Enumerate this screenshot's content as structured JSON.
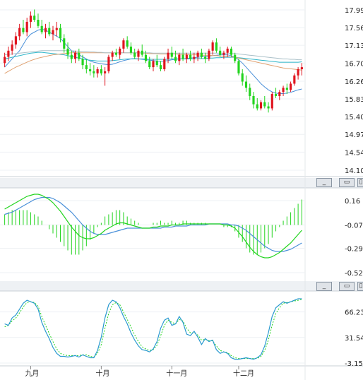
{
  "window_buttons": {
    "minimize_glyph": "_",
    "restore_glyph": "▭",
    "maximize_glyph": "▯"
  },
  "chart_data": [
    {
      "type": "candlestick",
      "panel": "price",
      "ylim": [
        14.1,
        17.99
      ],
      "yticks": [
        "17.99",
        "17.56",
        "17.13",
        "16.70",
        "16.26",
        "15.83",
        "15.40",
        "14.97",
        "14.54",
        "14.10"
      ],
      "xticks": [
        "九月",
        "十月",
        "十一月",
        "十二月"
      ],
      "colors": {
        "up": "#e0141e",
        "down": "#22d41e"
      },
      "candles": [
        [
          16.7,
          16.95,
          16.6,
          16.85
        ],
        [
          16.85,
          17.1,
          16.75,
          17.0
        ],
        [
          17.0,
          17.25,
          16.9,
          17.15
        ],
        [
          17.15,
          17.45,
          17.05,
          17.35
        ],
        [
          17.35,
          17.65,
          17.25,
          17.55
        ],
        [
          17.55,
          17.75,
          17.4,
          17.45
        ],
        [
          17.45,
          17.8,
          17.35,
          17.7
        ],
        [
          17.7,
          17.95,
          17.55,
          17.85
        ],
        [
          17.85,
          18.0,
          17.7,
          17.75
        ],
        [
          17.75,
          17.9,
          17.55,
          17.6
        ],
        [
          17.6,
          17.75,
          17.4,
          17.45
        ],
        [
          17.45,
          17.65,
          17.3,
          17.55
        ],
        [
          17.55,
          17.7,
          17.35,
          17.4
        ],
        [
          17.4,
          17.6,
          17.25,
          17.5
        ],
        [
          17.5,
          17.7,
          17.35,
          17.55
        ],
        [
          17.55,
          17.65,
          17.2,
          17.3
        ],
        [
          17.3,
          17.4,
          16.95,
          17.05
        ],
        [
          17.05,
          17.2,
          16.8,
          16.9
        ],
        [
          16.9,
          17.0,
          16.7,
          16.8
        ],
        [
          16.8,
          17.0,
          16.7,
          16.95
        ],
        [
          16.95,
          17.05,
          16.75,
          16.8
        ],
        [
          16.8,
          16.9,
          16.55,
          16.65
        ],
        [
          16.65,
          16.8,
          16.45,
          16.55
        ],
        [
          16.55,
          16.7,
          16.4,
          16.5
        ],
        [
          16.5,
          16.65,
          16.35,
          16.45
        ],
        [
          16.45,
          16.6,
          16.35,
          16.55
        ],
        [
          16.55,
          16.65,
          16.4,
          16.45
        ],
        [
          16.45,
          16.6,
          16.15,
          16.5
        ],
        [
          16.5,
          16.9,
          16.45,
          16.85
        ],
        [
          16.85,
          17.0,
          16.75,
          16.95
        ],
        [
          16.95,
          17.05,
          16.85,
          16.9
        ],
        [
          16.9,
          17.1,
          16.8,
          17.05
        ],
        [
          17.05,
          17.3,
          16.95,
          17.25
        ],
        [
          17.25,
          17.35,
          17.05,
          17.1
        ],
        [
          17.1,
          17.2,
          16.9,
          16.95
        ],
        [
          16.95,
          17.05,
          16.8,
          16.85
        ],
        [
          16.85,
          17.05,
          16.75,
          17.0
        ],
        [
          17.0,
          17.15,
          16.85,
          16.9
        ],
        [
          16.9,
          17.0,
          16.7,
          16.75
        ],
        [
          16.75,
          16.85,
          16.55,
          16.6
        ],
        [
          16.6,
          16.8,
          16.5,
          16.75
        ],
        [
          16.75,
          16.9,
          16.6,
          16.65
        ],
        [
          16.65,
          16.75,
          16.5,
          16.55
        ],
        [
          16.55,
          16.85,
          16.5,
          16.8
        ],
        [
          16.8,
          17.05,
          16.7,
          16.95
        ],
        [
          16.95,
          17.1,
          16.8,
          16.85
        ],
        [
          16.85,
          17.0,
          16.7,
          16.75
        ],
        [
          16.75,
          16.95,
          16.65,
          16.9
        ],
        [
          16.9,
          17.05,
          16.75,
          16.8
        ],
        [
          16.8,
          16.95,
          16.7,
          16.9
        ],
        [
          16.9,
          17.0,
          16.75,
          16.8
        ],
        [
          16.8,
          16.95,
          16.7,
          16.85
        ],
        [
          16.85,
          17.0,
          16.75,
          16.95
        ],
        [
          16.95,
          17.05,
          16.8,
          16.85
        ],
        [
          16.85,
          16.95,
          16.7,
          16.8
        ],
        [
          16.8,
          17.05,
          16.75,
          17.0
        ],
        [
          17.0,
          17.25,
          16.9,
          17.2
        ],
        [
          17.2,
          17.3,
          16.95,
          17.0
        ],
        [
          17.0,
          17.1,
          16.85,
          16.9
        ],
        [
          16.9,
          17.0,
          16.8,
          16.95
        ],
        [
          16.95,
          17.1,
          16.85,
          17.05
        ],
        [
          17.05,
          17.1,
          16.85,
          16.9
        ],
        [
          16.9,
          16.95,
          16.7,
          16.75
        ],
        [
          16.75,
          16.8,
          16.4,
          16.45
        ],
        [
          16.45,
          16.55,
          16.15,
          16.25
        ],
        [
          16.25,
          16.4,
          16.0,
          16.1
        ],
        [
          16.1,
          16.2,
          15.8,
          15.9
        ],
        [
          15.9,
          16.0,
          15.6,
          15.7
        ],
        [
          15.7,
          15.85,
          15.55,
          15.6
        ],
        [
          15.6,
          15.8,
          15.55,
          15.75
        ],
        [
          15.75,
          15.9,
          15.6,
          15.65
        ],
        [
          15.65,
          15.75,
          15.5,
          15.6
        ],
        [
          15.6,
          16.0,
          15.55,
          15.95
        ],
        [
          15.95,
          16.1,
          15.85,
          15.9
        ],
        [
          15.9,
          16.05,
          15.8,
          16.0
        ],
        [
          16.0,
          16.15,
          15.9,
          16.1
        ],
        [
          16.1,
          16.2,
          15.95,
          16.05
        ],
        [
          16.05,
          16.25,
          16.0,
          16.2
        ],
        [
          16.2,
          16.45,
          16.15,
          16.4
        ],
        [
          16.4,
          16.6,
          16.3,
          16.55
        ],
        [
          16.55,
          16.7,
          16.4,
          16.6
        ]
      ],
      "moving_averages": [
        {
          "color": "#4a90d9",
          "values": [
            16.6,
            16.7,
            16.8,
            16.9,
            17.0,
            17.15,
            17.3,
            17.4,
            17.45,
            17.5,
            17.52,
            17.5,
            17.45,
            17.4,
            17.35,
            17.3,
            17.2,
            17.1,
            17.0,
            16.95,
            16.9,
            16.85,
            16.8,
            16.75,
            16.72,
            16.7,
            16.68,
            16.67,
            16.66,
            16.67,
            16.7,
            16.73,
            16.76,
            16.78,
            16.8,
            16.81,
            16.8,
            16.79,
            16.78,
            16.77,
            16.76,
            16.75,
            16.74,
            16.75,
            16.76,
            16.78,
            16.79,
            16.8,
            16.8,
            16.81,
            16.82,
            16.83,
            16.84,
            16.85,
            16.86,
            16.87,
            16.88,
            16.89,
            16.9,
            16.9,
            16.9,
            16.88,
            16.84,
            16.78,
            16.7,
            16.6,
            16.5,
            16.4,
            16.3,
            16.2,
            16.12,
            16.05,
            16.0,
            15.97,
            15.96,
            15.96,
            15.97,
            15.99,
            16.02,
            16.05,
            16.07
          ]
        },
        {
          "color": "#2bb5c9",
          "values": [
            16.8,
            16.82,
            16.84,
            16.86,
            16.88,
            16.9,
            16.92,
            16.94,
            16.95,
            16.96,
            16.96,
            16.95,
            16.94,
            16.93,
            16.92,
            16.91,
            16.9,
            16.88,
            16.86,
            16.84,
            16.82,
            16.8,
            16.78,
            16.77,
            16.76,
            16.75,
            16.75,
            16.75,
            16.75,
            16.76,
            16.77,
            16.78,
            16.79,
            16.8,
            16.8,
            16.8,
            16.8,
            16.8,
            16.8,
            16.79,
            16.79,
            16.79,
            16.79,
            16.79,
            16.79,
            16.8,
            16.8,
            16.8,
            16.8,
            16.8,
            16.8,
            16.8,
            16.81,
            16.81,
            16.81,
            16.82,
            16.82,
            16.83,
            16.83,
            16.84,
            16.84,
            16.84,
            16.84,
            16.83,
            16.82,
            16.81,
            16.8,
            16.79,
            16.78,
            16.77,
            16.76,
            16.75,
            16.74,
            16.73,
            16.72,
            16.72,
            16.72,
            16.72,
            16.72,
            16.72,
            16.73
          ]
        },
        {
          "color": "#e0a070",
          "values": [
            16.45,
            16.5,
            16.55,
            16.6,
            16.64,
            16.68,
            16.72,
            16.76,
            16.79,
            16.82,
            16.84,
            16.86,
            16.88,
            16.9,
            16.91,
            16.92,
            16.93,
            16.94,
            16.95,
            16.95,
            16.95,
            16.95,
            16.95,
            16.95,
            16.95,
            16.95,
            16.95,
            16.95,
            16.95,
            16.95,
            16.95,
            16.95,
            16.95,
            16.95,
            16.95,
            16.95,
            16.95,
            16.94,
            16.94,
            16.93,
            16.93,
            16.93,
            16.92,
            16.92,
            16.92,
            16.92,
            16.92,
            16.91,
            16.91,
            16.91,
            16.9,
            16.9,
            16.9,
            16.89,
            16.89,
            16.89,
            16.88,
            16.88,
            16.87,
            16.87,
            16.86,
            16.85,
            16.84,
            16.82,
            16.8,
            16.78,
            16.76,
            16.74,
            16.72,
            16.7,
            16.68,
            16.66,
            16.64,
            16.62,
            16.6,
            16.58,
            16.57,
            16.56,
            16.55,
            16.54,
            16.53
          ]
        },
        {
          "color": "#aac0c8",
          "values": [
            16.9,
            16.91,
            16.92,
            16.93,
            16.94,
            16.95,
            16.96,
            16.97,
            16.98,
            16.99,
            17.0,
            17.0,
            17.0,
            17.0,
            17.0,
            17.0,
            17.0,
            17.0,
            17.0,
            16.99,
            16.99,
            16.98,
            16.98,
            16.97,
            16.97,
            16.96,
            16.96,
            16.95,
            16.95,
            16.95,
            16.95,
            16.95,
            16.95,
            16.95,
            16.95,
            16.95,
            16.95,
            16.95,
            16.95,
            16.95,
            16.94,
            16.94,
            16.94,
            16.94,
            16.94,
            16.94,
            16.94,
            16.94,
            16.94,
            16.94,
            16.94,
            16.94,
            16.94,
            16.94,
            16.94,
            16.94,
            16.94,
            16.94,
            16.94,
            16.94,
            16.94,
            16.93,
            16.93,
            16.92,
            16.91,
            16.9,
            16.89,
            16.88,
            16.87,
            16.86,
            16.85,
            16.84,
            16.83,
            16.82,
            16.81,
            16.8,
            16.8,
            16.79,
            16.79,
            16.78,
            16.78
          ]
        }
      ]
    },
    {
      "type": "macd",
      "panel": "macd",
      "ylim": [
        -0.52,
        0.16
      ],
      "yticks": [
        "0.16",
        "-0.07",
        "-0.29",
        "-0.52"
      ],
      "colors": {
        "dif": "#22d41e",
        "dea": "#4a90d9",
        "hist": "#22d41e"
      },
      "dif": [
        0.08,
        0.1,
        0.12,
        0.14,
        0.16,
        0.18,
        0.2,
        0.21,
        0.22,
        0.22,
        0.21,
        0.19,
        0.17,
        0.14,
        0.1,
        0.06,
        0.01,
        -0.04,
        -0.09,
        -0.13,
        -0.17,
        -0.19,
        -0.2,
        -0.2,
        -0.19,
        -0.17,
        -0.15,
        -0.12,
        -0.1,
        -0.08,
        -0.06,
        -0.05,
        -0.05,
        -0.06,
        -0.07,
        -0.08,
        -0.09,
        -0.1,
        -0.1,
        -0.1,
        -0.09,
        -0.09,
        -0.08,
        -0.08,
        -0.08,
        -0.07,
        -0.07,
        -0.07,
        -0.06,
        -0.06,
        -0.06,
        -0.06,
        -0.06,
        -0.06,
        -0.06,
        -0.06,
        -0.06,
        -0.06,
        -0.06,
        -0.07,
        -0.07,
        -0.08,
        -0.1,
        -0.14,
        -0.18,
        -0.23,
        -0.28,
        -0.32,
        -0.35,
        -0.37,
        -0.38,
        -0.38,
        -0.37,
        -0.35,
        -0.33,
        -0.3,
        -0.27,
        -0.24,
        -0.2,
        -0.16,
        -0.12
      ],
      "dea": [
        0.03,
        0.04,
        0.05,
        0.07,
        0.09,
        0.11,
        0.13,
        0.15,
        0.17,
        0.18,
        0.19,
        0.19,
        0.19,
        0.18,
        0.16,
        0.14,
        0.11,
        0.08,
        0.05,
        0.01,
        -0.03,
        -0.07,
        -0.1,
        -0.13,
        -0.15,
        -0.16,
        -0.16,
        -0.16,
        -0.15,
        -0.14,
        -0.13,
        -0.12,
        -0.11,
        -0.1,
        -0.1,
        -0.1,
        -0.1,
        -0.1,
        -0.1,
        -0.1,
        -0.1,
        -0.1,
        -0.1,
        -0.09,
        -0.09,
        -0.09,
        -0.08,
        -0.08,
        -0.08,
        -0.08,
        -0.07,
        -0.07,
        -0.07,
        -0.07,
        -0.07,
        -0.06,
        -0.06,
        -0.06,
        -0.06,
        -0.06,
        -0.06,
        -0.07,
        -0.07,
        -0.08,
        -0.1,
        -0.12,
        -0.15,
        -0.18,
        -0.21,
        -0.24,
        -0.27,
        -0.29,
        -0.31,
        -0.32,
        -0.32,
        -0.32,
        -0.31,
        -0.3,
        -0.28,
        -0.26,
        -0.24
      ]
    },
    {
      "type": "stochastic",
      "panel": "kdj",
      "ylim": [
        -3.15,
        85
      ],
      "yticks": [
        "66.23",
        "31.54",
        "-3.15"
      ],
      "colors": {
        "k": "#2a9ad0",
        "d": "#22d41e"
      },
      "k": [
        50,
        48,
        58,
        62,
        70,
        78,
        82,
        80,
        78,
        70,
        52,
        40,
        30,
        18,
        10,
        6,
        6,
        5,
        6,
        7,
        5,
        8,
        6,
        4,
        4,
        14,
        32,
        58,
        76,
        82,
        80,
        72,
        60,
        50,
        38,
        28,
        20,
        15,
        14,
        12,
        16,
        26,
        44,
        55,
        58,
        48,
        50,
        60,
        52,
        36,
        34,
        40,
        32,
        22,
        30,
        26,
        28,
        15,
        10,
        12,
        10,
        4,
        2,
        2,
        3,
        4,
        3,
        2,
        4,
        8,
        20,
        38,
        60,
        72,
        76,
        80,
        78,
        80,
        82,
        84,
        84
      ],
      "d": [
        46,
        48,
        54,
        58,
        65,
        73,
        79,
        80,
        79,
        74,
        60,
        48,
        37,
        26,
        16,
        10,
        8,
        7,
        7,
        7,
        7,
        8,
        8,
        6,
        5,
        10,
        22,
        44,
        64,
        76,
        79,
        76,
        66,
        56,
        46,
        35,
        26,
        19,
        16,
        14,
        15,
        21,
        34,
        48,
        55,
        52,
        50,
        56,
        54,
        44,
        38,
        38,
        35,
        28,
        29,
        27,
        27,
        20,
        14,
        12,
        11,
        7,
        4,
        3,
        3,
        3,
        3,
        3,
        3,
        6,
        14,
        28,
        48,
        64,
        72,
        78,
        79,
        80,
        81,
        82,
        83
      ]
    }
  ]
}
